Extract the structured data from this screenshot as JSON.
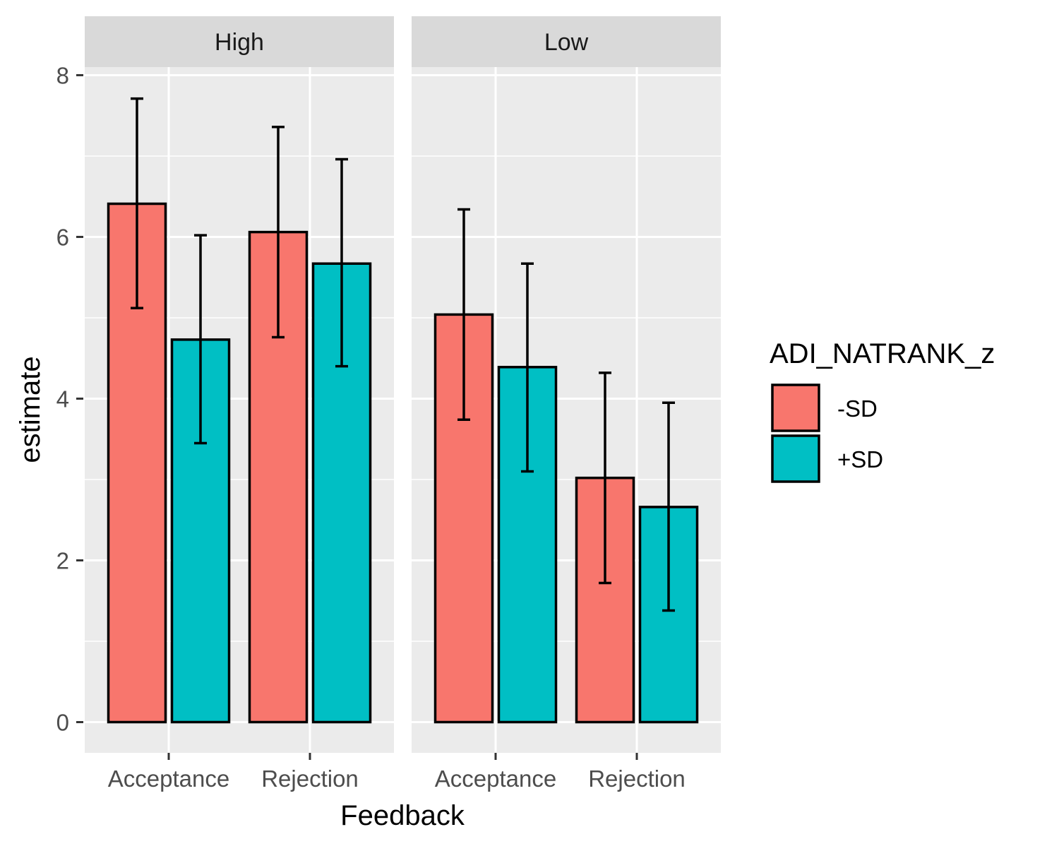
{
  "chart_data": {
    "type": "bar",
    "xlabel": "Feedback",
    "ylabel": "estimate",
    "ylim": [
      -0.38,
      8.1
    ],
    "yticks": [
      0,
      2,
      4,
      6,
      8
    ],
    "categories": [
      "Acceptance",
      "Rejection"
    ],
    "legend": {
      "title": "ADI_NATRANK_z",
      "position": "right",
      "entries": [
        {
          "label": "-SD",
          "color": "#F8766D"
        },
        {
          "label": "+SD",
          "color": "#00BFC4"
        }
      ]
    },
    "panels": [
      {
        "label": "High",
        "series": [
          {
            "name": "-SD",
            "values": [
              6.41,
              6.06
            ],
            "lower": [
              5.12,
              4.76
            ],
            "upper": [
              7.71,
              7.36
            ]
          },
          {
            "name": "+SD",
            "values": [
              4.73,
              5.67
            ],
            "lower": [
              3.45,
              4.4
            ],
            "upper": [
              6.02,
              6.96
            ]
          }
        ]
      },
      {
        "label": "Low",
        "series": [
          {
            "name": "-SD",
            "values": [
              5.04,
              3.02
            ],
            "lower": [
              3.74,
              1.72
            ],
            "upper": [
              6.34,
              4.32
            ]
          },
          {
            "name": "+SD",
            "values": [
              4.39,
              2.66
            ],
            "lower": [
              3.1,
              1.38
            ],
            "upper": [
              5.67,
              3.95
            ]
          }
        ]
      }
    ],
    "grid": true
  }
}
